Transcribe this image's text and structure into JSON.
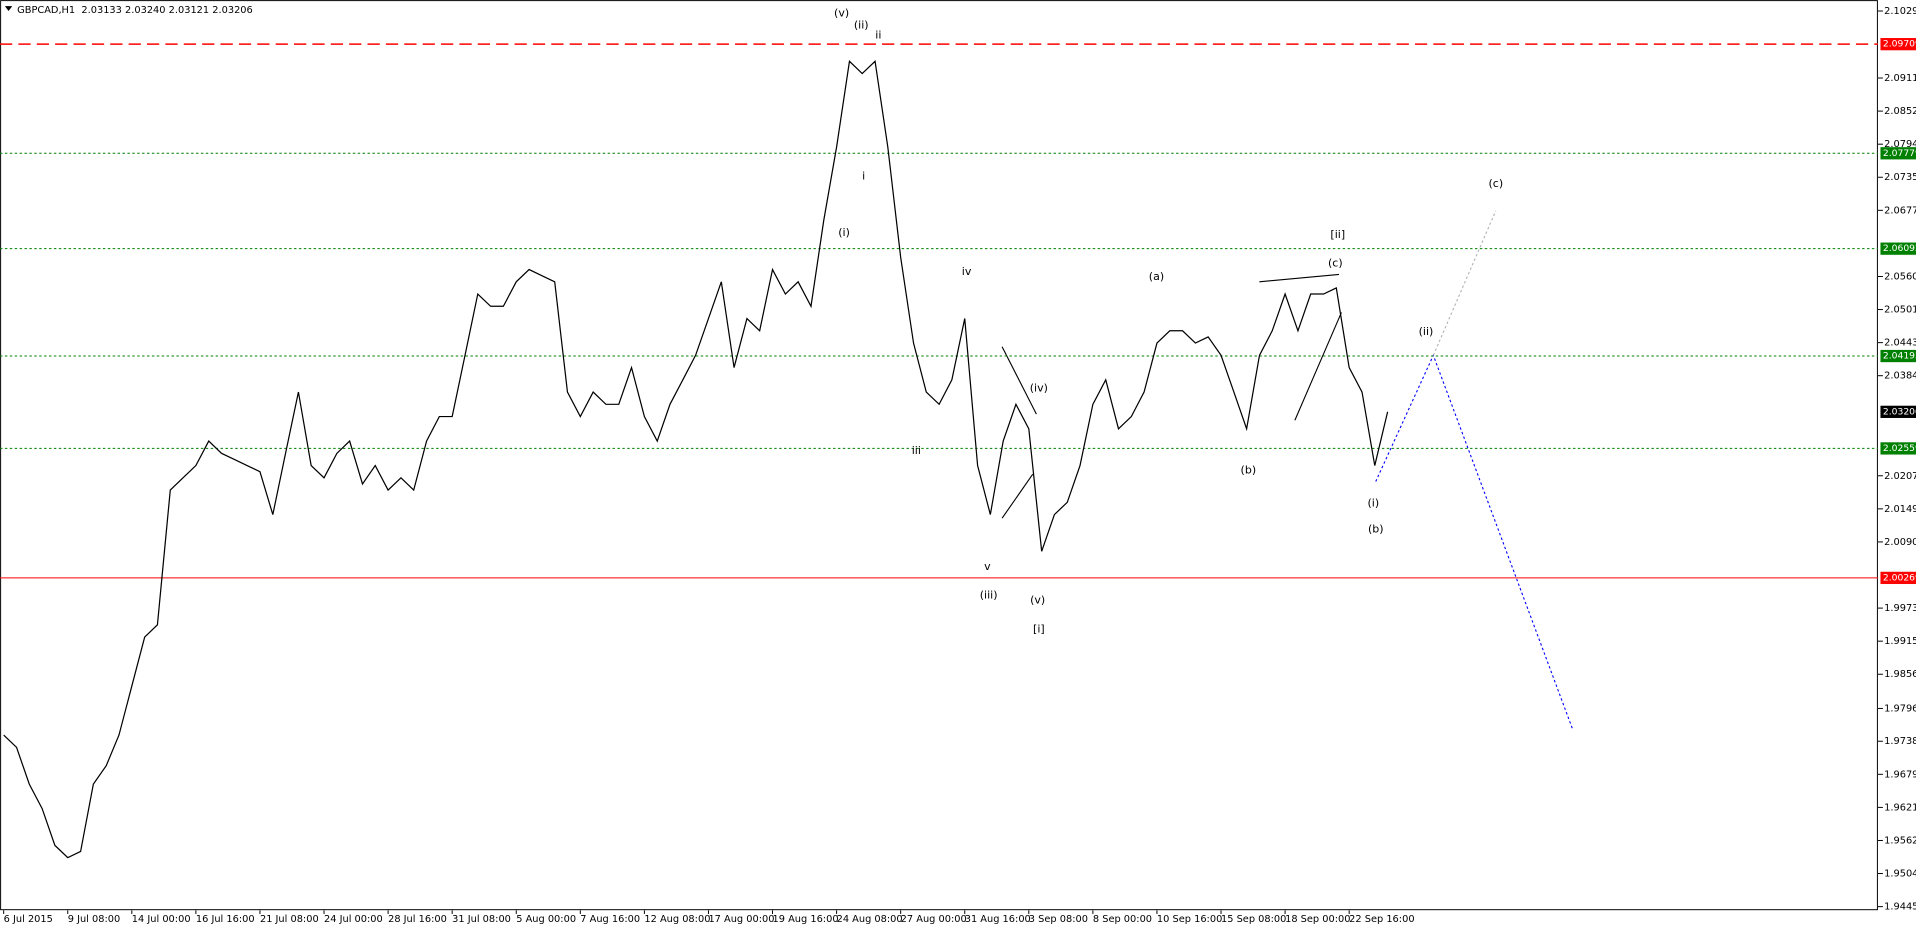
{
  "chart_data": {
    "type": "line",
    "title": "GBPCAD,H1  2.03133 2.03240 2.03121 2.03206",
    "color": "#000000",
    "categories": [
      "6 Jul 2015",
      null,
      null,
      null,
      null,
      "9 Jul 08:00",
      null,
      null,
      null,
      null,
      "14 Jul 00:00",
      null,
      null,
      null,
      null,
      "16 Jul 16:00",
      null,
      null,
      null,
      null,
      "21 Jul 08:00",
      null,
      null,
      null,
      null,
      "24 Jul 00:00",
      null,
      null,
      null,
      null,
      "28 Jul 16:00",
      null,
      null,
      null,
      null,
      "31 Jul 08:00",
      null,
      null,
      null,
      null,
      "5 Aug 00:00",
      null,
      null,
      null,
      null,
      "7 Aug 16:00",
      null,
      null,
      null,
      null,
      "12 Aug 08:00",
      null,
      null,
      null,
      null,
      "17 Aug 00:00",
      null,
      null,
      null,
      null,
      "19 Aug 16:00",
      null,
      null,
      null,
      null,
      "24 Aug 08:00",
      null,
      null,
      null,
      null,
      "27 Aug 00:00",
      null,
      null,
      null,
      null,
      "31 Aug 16:00",
      null,
      null,
      null,
      null,
      "3 Sep 08:00",
      null,
      null,
      null,
      null,
      "8 Sep 00:00",
      null,
      null,
      null,
      null,
      "10 Sep 16:00",
      null,
      null,
      null,
      null,
      "15 Sep 08:00",
      null,
      null,
      null,
      null,
      "18 Sep 00:00",
      null,
      null,
      null,
      null,
      "22 Sep 16:00",
      null,
      null,
      null
    ],
    "values": [
      1.97489,
      1.97272,
      1.96622,
      1.96189,
      1.95539,
      1.95322,
      1.95431,
      1.96622,
      1.96948,
      1.97489,
      1.98356,
      1.99223,
      1.99439,
      2.01823,
      2.02039,
      2.02256,
      2.0269,
      2.02473,
      2.02365,
      2.02256,
      2.02148,
      2.01389,
      2.02473,
      2.03556,
      2.02256,
      2.02039,
      2.02473,
      2.0269,
      2.01931,
      2.02256,
      2.01823,
      2.02039,
      2.01823,
      2.0269,
      2.03123,
      2.03123,
      2.04206,
      2.0529,
      2.05073,
      2.05073,
      2.05506,
      2.05723,
      2.05615,
      2.05506,
      2.03556,
      2.03123,
      2.03556,
      2.0334,
      2.0334,
      2.0399,
      2.03123,
      2.0269,
      2.0334,
      2.03773,
      2.04206,
      2.04856,
      2.05506,
      2.0399,
      2.04856,
      2.0464,
      2.05723,
      2.0529,
      2.05506,
      2.05073,
      2.0659,
      2.0789,
      2.09407,
      2.0919,
      2.09407,
      2.0789,
      2.0594,
      2.04423,
      2.03556,
      2.0334,
      2.03773,
      2.04856,
      2.02256,
      2.01389,
      2.0269,
      2.0334,
      2.02906,
      2.0074,
      2.01389,
      2.01606,
      2.02256,
      2.0334,
      2.03773,
      2.02906,
      2.03123,
      2.03556,
      2.04423,
      2.0464,
      2.0464,
      2.04423,
      2.04531,
      2.04206,
      2.03556,
      2.02906,
      2.04206,
      2.0464,
      2.0529,
      2.0464,
      2.0529,
      2.0529,
      2.05398,
      2.0399,
      2.03556,
      2.02256,
      2.03206
    ],
    "ylim": [
      1.9439,
      2.1049
    ],
    "yticks": [
      2.10295,
      {
        "value": 2.0911,
        "label": "2.09110"
      },
      2.08525,
      {
        "value": 2.0794,
        "label": "2.07940"
      },
      2.07355,
      {
        "value": 2.0677,
        "label": "2.06770"
      },
      {
        "value": 2.056,
        "label": "2.05600"
      },
      2.05015,
      {
        "value": 2.0443,
        "label": "2.04430"
      },
      2.03845,
      2.02075,
      {
        "value": 2.0149,
        "label": "2.01490"
      },
      2.00905,
      1.99735,
      {
        "value": 1.9915,
        "label": "1.99150"
      },
      1.98565,
      {
        "value": 1.9796,
        "label": "1.97960"
      },
      {
        "value": 1.9738,
        "label": "1.97380"
      },
      1.96795,
      {
        "value": 1.9621,
        "label": "1.96210"
      },
      1.95625,
      {
        "value": 1.9504,
        "label": "1.95040"
      },
      1.94455
    ],
    "levels": [
      {
        "value": 2.09709,
        "color": "#ff0000",
        "style": "dashed"
      },
      {
        "value": 2.07779,
        "color": "#008000",
        "style": "dotted"
      },
      {
        "value": 2.06092,
        "color": "#008000",
        "style": "dotted"
      },
      {
        "value": 2.04193,
        "color": "#008000",
        "style": "dotted"
      },
      {
        "value": 2.02559,
        "color": "#008000",
        "style": "dotted"
      },
      {
        "value": 2.00269,
        "color": "#ff0000",
        "style": "solid"
      },
      {
        "value": 2.03206,
        "color": "#000000",
        "style": "none"
      }
    ],
    "annotations": [
      "(v)",
      "(ii)",
      "ii",
      "i",
      "(i)",
      "iv",
      "iii",
      "(iv)",
      "v",
      "(iii)",
      "(v)",
      "[i]",
      "(a)",
      "(b)",
      "(c)",
      "[ii]",
      "(ii)",
      "(i)",
      "(b)",
      "(c)"
    ],
    "grid": false
  }
}
